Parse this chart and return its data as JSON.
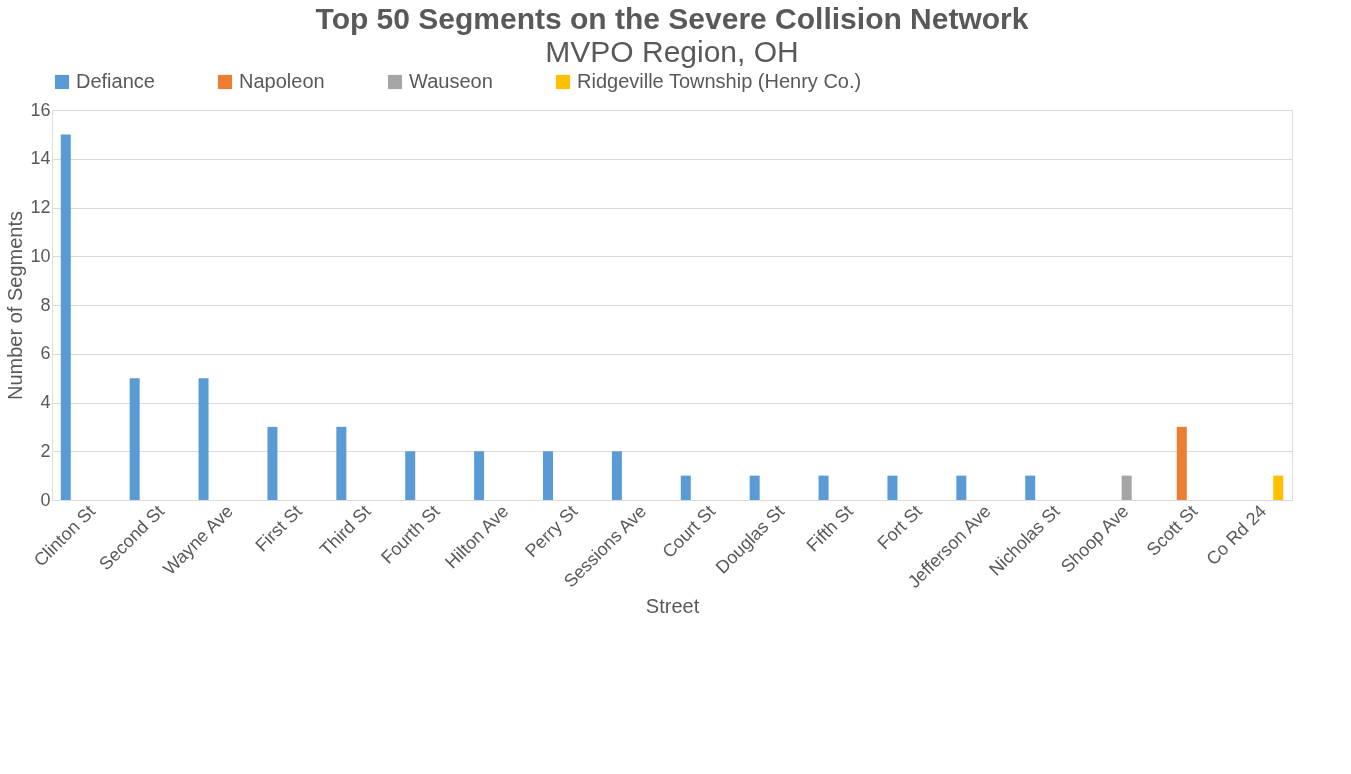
{
  "chart_data": {
    "type": "bar",
    "title": "Top 50 Segments on the Severe Collision Network",
    "subtitle": "MVPO Region, OH",
    "xlabel": "Street",
    "ylabel": "Number of Segments",
    "categories": [
      "Clinton St",
      "Second St",
      "Wayne Ave",
      "First St",
      "Third St",
      "Fourth St",
      "Hilton Ave",
      "Perry St",
      "Sessions Ave",
      "Court St",
      "Douglas St",
      "Fifth St",
      "Fort St",
      "Jefferson Ave",
      "Nicholas St",
      "Shoop Ave",
      "Scott St",
      "Co Rd 24"
    ],
    "series": [
      {
        "name": "Defiance",
        "color": "#5b9bd5",
        "values": [
          15,
          5,
          5,
          3,
          3,
          2,
          2,
          2,
          2,
          1,
          1,
          1,
          1,
          1,
          1,
          null,
          null,
          null
        ]
      },
      {
        "name": "Napoleon",
        "color": "#ed7d31",
        "values": [
          null,
          null,
          null,
          null,
          null,
          null,
          null,
          null,
          null,
          null,
          null,
          null,
          null,
          null,
          null,
          null,
          3,
          null
        ]
      },
      {
        "name": "Wauseon",
        "color": "#a5a5a5",
        "values": [
          null,
          null,
          null,
          null,
          null,
          null,
          null,
          null,
          null,
          null,
          null,
          null,
          null,
          null,
          null,
          1,
          null,
          null
        ]
      },
      {
        "name": "Ridgeville Township (Henry Co.)",
        "color": "#ffc000",
        "values": [
          null,
          null,
          null,
          null,
          null,
          null,
          null,
          null,
          null,
          null,
          null,
          null,
          null,
          null,
          null,
          null,
          null,
          1
        ]
      }
    ],
    "ylim": [
      0,
      16
    ],
    "yticks": [
      0,
      2,
      4,
      6,
      8,
      10,
      12,
      14,
      16
    ],
    "grid": "y",
    "legend": "top"
  }
}
